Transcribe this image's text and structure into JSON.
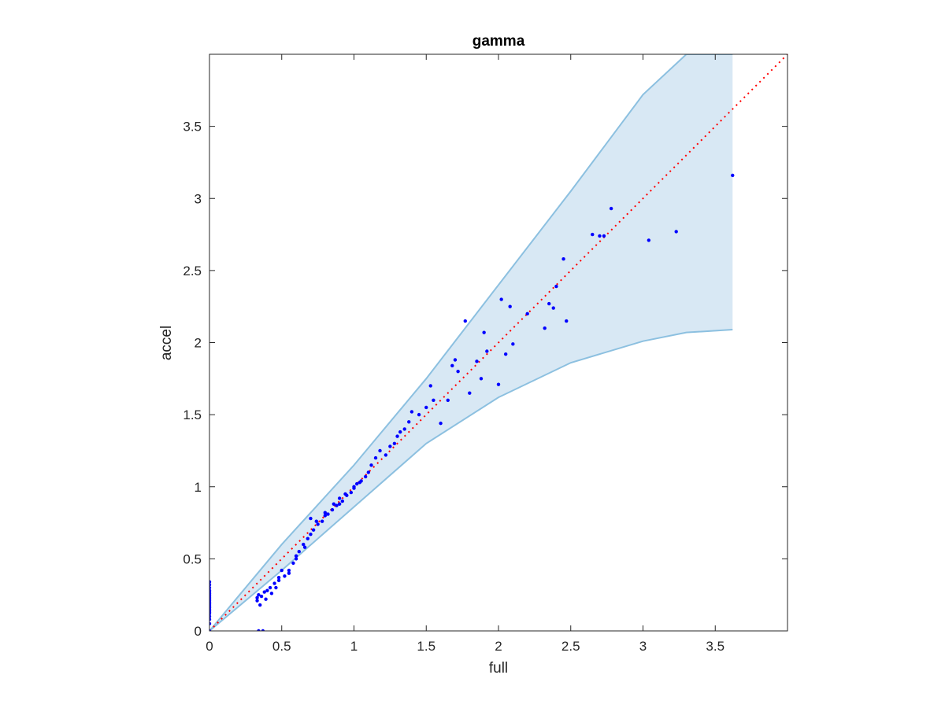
{
  "chart_data": {
    "type": "scatter",
    "title": "gamma",
    "xlabel": "full",
    "ylabel": "accel",
    "xlim": [
      0,
      4
    ],
    "ylim": [
      0,
      4
    ],
    "xticks": [
      0,
      0.5,
      1,
      1.5,
      2,
      2.5,
      3,
      3.5
    ],
    "yticks": [
      0,
      0.5,
      1,
      1.5,
      2,
      2.5,
      3,
      3.5
    ],
    "xtick_labels": [
      "0",
      "0.5",
      "1",
      "1.5",
      "2",
      "2.5",
      "3",
      "3.5"
    ],
    "ytick_labels": [
      "0",
      "0.5",
      "1",
      "1.5",
      "2",
      "2.5",
      "3",
      "3.5"
    ],
    "grid": false,
    "colors": {
      "points": "#0000ff",
      "band_fill": "#d8e8f4",
      "band_edge": "#8cc0e0",
      "reference_line": "#ff0000",
      "axes": "#262626"
    },
    "reference_line": {
      "style": "dotted",
      "x": [
        0,
        4
      ],
      "y": [
        0,
        4
      ]
    },
    "band": {
      "x": [
        0,
        0.5,
        1,
        1.5,
        2,
        2.5,
        3,
        3.3,
        3.62
      ],
      "upper": [
        0,
        0.6,
        1.15,
        1.75,
        2.4,
        3.05,
        3.72,
        4.0,
        4.0
      ],
      "lower": [
        0,
        0.42,
        0.86,
        1.3,
        1.62,
        1.86,
        2.01,
        2.07,
        2.09
      ]
    },
    "points": {
      "x": [
        0,
        0,
        0,
        0,
        0,
        0,
        0,
        0,
        0,
        0,
        0,
        0,
        0,
        0,
        0,
        0,
        0,
        0,
        0,
        0,
        0,
        0,
        0,
        0,
        0.34,
        0.37,
        0.33,
        0.33,
        0.34,
        0.36,
        0.38,
        0.4,
        0.42,
        0.45,
        0.48,
        0.5,
        0.35,
        0.39,
        0.43,
        0.46,
        0.52,
        0.55,
        0.58,
        0.6,
        0.62,
        0.65,
        0.68,
        0.7,
        0.72,
        0.75,
        0.78,
        0.8,
        0.82,
        0.85,
        0.88,
        0.9,
        0.92,
        0.95,
        0.98,
        1,
        1.02,
        1.05,
        1.08,
        1.1,
        0.48,
        0.55,
        0.6,
        0.66,
        0.7,
        0.74,
        0.8,
        0.86,
        0.9,
        0.94,
        1,
        1.04,
        1.12,
        1.15,
        1.18,
        1.22,
        1.25,
        1.28,
        1.3,
        1.32,
        1.35,
        1.38,
        1.4,
        1.45,
        1.5,
        1.53,
        1.55,
        1.6,
        1.65,
        1.68,
        1.7,
        1.72,
        1.77,
        1.8,
        1.85,
        1.88,
        1.9,
        1.92,
        2,
        2.02,
        2.05,
        2.08,
        2.1,
        2.2,
        2.32,
        2.35,
        2.38,
        2.4,
        2.45,
        2.47,
        2.65,
        2.7,
        2.73,
        2.78,
        3.04,
        3.23,
        3.62
      ],
      "y": [
        0.34,
        0.32,
        0.3,
        0.28,
        0.27,
        0.26,
        0.25,
        0.24,
        0.23,
        0.22,
        0.21,
        0.2,
        0.19,
        0.18,
        0.17,
        0.16,
        0.15,
        0.14,
        0.13,
        0.12,
        0.1,
        0.08,
        0.05,
        0,
        0,
        0,
        0.21,
        0.23,
        0.25,
        0.24,
        0.27,
        0.28,
        0.3,
        0.33,
        0.37,
        0.42,
        0.18,
        0.22,
        0.26,
        0.3,
        0.38,
        0.42,
        0.47,
        0.52,
        0.55,
        0.6,
        0.64,
        0.67,
        0.7,
        0.74,
        0.76,
        0.8,
        0.81,
        0.84,
        0.87,
        0.88,
        0.9,
        0.94,
        0.96,
        0.99,
        1.02,
        1.04,
        1.07,
        1.1,
        0.35,
        0.4,
        0.5,
        0.58,
        0.78,
        0.76,
        0.82,
        0.88,
        0.92,
        0.95,
        1,
        1.03,
        1.15,
        1.2,
        1.25,
        1.22,
        1.28,
        1.3,
        1.35,
        1.38,
        1.4,
        1.45,
        1.52,
        1.5,
        1.55,
        1.7,
        1.6,
        1.44,
        1.6,
        1.84,
        1.88,
        1.8,
        2.15,
        1.65,
        1.87,
        1.75,
        2.07,
        1.94,
        1.71,
        2.3,
        1.92,
        2.25,
        1.99,
        2.2,
        2.1,
        2.27,
        2.24,
        2.39,
        2.58,
        2.15,
        2.75,
        2.74,
        2.74,
        2.93,
        2.71,
        2.77,
        3.16
      ]
    }
  }
}
